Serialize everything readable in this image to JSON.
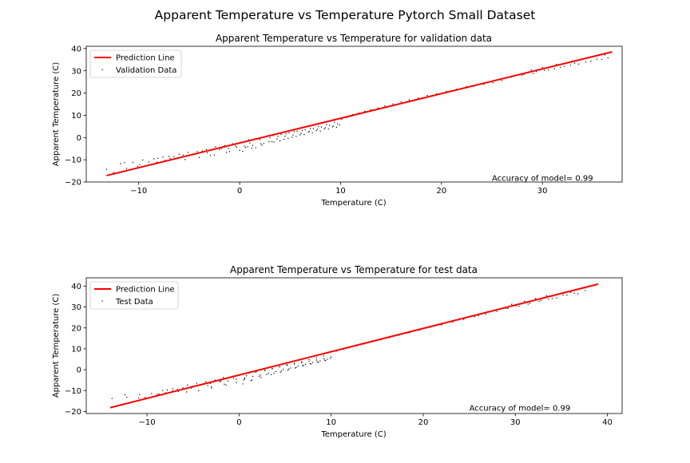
{
  "figure": {
    "title": "Apparent Temperature vs Temperature Pytorch Small Dataset"
  },
  "chart_data": [
    {
      "type": "scatter",
      "title": "Apparent Temperature vs Temperature for validation data",
      "xlabel": "Temperature (C)",
      "ylabel": "Apparent Temperature (C)",
      "xlim": [
        -15.2,
        37.9
      ],
      "ylim": [
        -20,
        41
      ],
      "xticks": [
        -10,
        0,
        10,
        20,
        30
      ],
      "yticks": [
        -20,
        -10,
        0,
        10,
        20,
        30,
        40
      ],
      "grid": false,
      "legend": {
        "placement": "upper-left",
        "entries": [
          "Prediction Line",
          "Validation Data"
        ]
      },
      "annotation": "Accuracy of model= 0.99",
      "annotation_position": [
        25,
        -19.4
      ],
      "colors": {
        "line": "#ff0000",
        "points": "#000000"
      },
      "series": [
        {
          "name": "Prediction Line",
          "kind": "line",
          "x": [
            -13.2,
            36.9
          ],
          "y": [
            -17.1,
            38.5
          ]
        },
        {
          "name": "Validation Data",
          "kind": "scatter",
          "x": [
            -13.2,
            -12.5,
            -11.8,
            -11.2,
            -10.6,
            -10.1,
            -9.6,
            -9.0,
            -8.5,
            -8.1,
            -7.6,
            -7.0,
            -6.5,
            -6.0,
            -5.6,
            -5.1,
            -4.6,
            -4.2,
            -3.7,
            -3.3,
            -2.8,
            -2.4,
            -2.0,
            -1.5,
            -1.1,
            -0.7,
            -0.3,
            0.1,
            0.5,
            0.9,
            1.3,
            1.7,
            2.1,
            2.5,
            2.9,
            3.3,
            3.7,
            4.1,
            4.5,
            4.9,
            5.3,
            5.7,
            6.1,
            6.5,
            6.9,
            7.3,
            7.7,
            8.1,
            8.5,
            8.9,
            9.3,
            9.7,
            10.1,
            10.6,
            11.2,
            11.8,
            12.4,
            13.0,
            13.7,
            14.4,
            15.2,
            16.0,
            16.8,
            17.7,
            18.6,
            19.5,
            20.5,
            21.5,
            22.5,
            23.6,
            24.7,
            25.8,
            26.9,
            28.0,
            29.1,
            30.2,
            31.2,
            32.2,
            33.2,
            34.3,
            35.4,
            36.5,
            -4.0,
            -2.5,
            -1.0,
            0.0,
            0.8,
            1.6,
            2.4,
            3.2,
            4.0,
            4.8,
            5.6,
            6.4,
            7.2,
            8.0,
            8.8,
            9.6,
            -8.8,
            -7.4,
            -6.2,
            -5.0,
            -3.2,
            -1.8,
            -0.4,
            1.0,
            2.0,
            3.0,
            3.8,
            4.6,
            5.4,
            6.2,
            7.0,
            7.8,
            8.6,
            9.4,
            0.3,
            1.2,
            2.2,
            3.4,
            4.4,
            5.2,
            6.0,
            6.8,
            7.6,
            8.4,
            9.2,
            9.9,
            -11.4,
            -9.9,
            -8.2,
            -6.9,
            -5.4,
            -2.9,
            -1.3,
            0.6,
            26.4,
            27.3,
            28.2,
            29.4,
            30.6,
            31.8,
            32.8,
            33.6,
            34.8,
            35.9,
            28.9,
            30.0,
            31.4,
            33.0,
            34.6,
            36.2,
            21.0,
            22.0,
            23.2,
            24.2,
            25.1,
            26.0
          ],
          "y": [
            -14.3,
            -15.8,
            -11.7,
            -13.9,
            -11.2,
            -13.0,
            -10.1,
            -11.0,
            -9.6,
            -9.4,
            -8.8,
            -8.5,
            -8.6,
            -7.5,
            -7.9,
            -6.7,
            -7.4,
            -6.3,
            -6.1,
            -5.4,
            -5.7,
            -4.2,
            -5.5,
            -3.6,
            -4.9,
            -2.8,
            -4.4,
            -2.2,
            -3.9,
            -1.0,
            -3.6,
            -0.5,
            -2.8,
            0.3,
            -1.9,
            0.9,
            -0.6,
            1.4,
            0.6,
            2.1,
            1.1,
            2.8,
            1.9,
            3.5,
            2.8,
            4.0,
            3.7,
            4.7,
            4.4,
            5.5,
            5.1,
            6.2,
            8.2,
            8.9,
            10.3,
            11.0,
            11.8,
            12.5,
            13.3,
            14.2,
            15.1,
            16.0,
            16.9,
            17.8,
            18.9,
            19.7,
            20.8,
            21.7,
            22.9,
            23.8,
            25.0,
            25.9,
            27.1,
            28.0,
            28.8,
            30.2,
            30.9,
            31.9,
            33.4,
            33.9,
            35.2,
            35.8,
            -9.0,
            -7.8,
            -6.3,
            -5.8,
            -4.1,
            -4.6,
            -2.7,
            -1.9,
            -1.5,
            -0.4,
            0.5,
            1.3,
            2.1,
            2.9,
            3.8,
            4.6,
            -12.1,
            -10.3,
            -9.5,
            -8.2,
            -6.9,
            -4.9,
            -3.8,
            -2.5,
            -0.9,
            0.0,
            0.6,
            1.7,
            2.6,
            3.2,
            4.1,
            5.0,
            5.8,
            6.9,
            -6.2,
            -4.8,
            -3.4,
            -2.0,
            -0.8,
            0.1,
            1.2,
            2.4,
            3.1,
            3.9,
            4.8,
            5.6,
            -11.3,
            -12.2,
            -11.1,
            -9.4,
            -9.9,
            -8.1,
            -6.7,
            -4.5,
            27.0,
            27.8,
            28.4,
            29.6,
            30.4,
            31.6,
            32.5,
            33.0,
            34.4,
            35.1,
            30.4,
            31.5,
            32.9,
            34.4,
            35.8,
            37.1,
            21.0,
            21.8,
            23.0,
            23.9,
            24.6,
            25.6
          ]
        }
      ]
    },
    {
      "type": "scatter",
      "title": "Apparent Temperature vs Temperature for test data",
      "xlabel": "Temperature (C)",
      "ylabel": "Apparent Temperature (C)",
      "xlim": [
        -16.6,
        41.6
      ],
      "ylim": [
        -21,
        44
      ],
      "xticks": [
        -10,
        0,
        10,
        20,
        30,
        40
      ],
      "yticks": [
        -20,
        -10,
        0,
        10,
        20,
        30,
        40
      ],
      "grid": false,
      "legend": {
        "placement": "upper-left",
        "entries": [
          "Prediction Line",
          "Test Data"
        ]
      },
      "annotation": "Accuracy of model= 0.99",
      "annotation_position": [
        25,
        -19.7
      ],
      "colors": {
        "line": "#ff0000",
        "points": "#000000"
      },
      "series": [
        {
          "name": "Prediction Line",
          "kind": "line",
          "x": [
            -14.0,
            39.0
          ],
          "y": [
            -18.2,
            41.0
          ]
        },
        {
          "name": "Test Data",
          "kind": "scatter",
          "x": [
            -13.8,
            -13.0,
            -12.2,
            -11.5,
            -10.8,
            -10.2,
            -9.5,
            -8.9,
            -8.3,
            -7.8,
            -7.2,
            -6.7,
            -6.1,
            -5.6,
            -5.1,
            -4.6,
            -4.1,
            -3.6,
            -3.1,
            -2.6,
            -2.1,
            -1.7,
            -1.2,
            -0.7,
            -0.3,
            0.2,
            0.6,
            1.1,
            1.5,
            1.9,
            2.3,
            2.8,
            3.2,
            3.6,
            4.0,
            4.4,
            4.8,
            5.2,
            5.6,
            6.0,
            6.4,
            6.8,
            7.2,
            7.6,
            8.0,
            8.4,
            8.8,
            9.2,
            9.6,
            10.0,
            10.6,
            11.3,
            12.0,
            12.8,
            13.6,
            14.5,
            15.4,
            16.4,
            17.4,
            18.5,
            19.6,
            20.8,
            22.0,
            23.2,
            24.4,
            25.6,
            26.8,
            28.0,
            29.2,
            30.4,
            31.6,
            32.8,
            34.0,
            35.2,
            36.4,
            37.6,
            -4.4,
            -3.0,
            -1.6,
            -0.3,
            0.6,
            1.4,
            2.2,
            3.0,
            3.8,
            4.6,
            5.4,
            6.2,
            7.0,
            7.8,
            8.6,
            9.4,
            -9.4,
            -8.0,
            -6.6,
            -5.2,
            -3.4,
            -2.0,
            -0.6,
            0.8,
            1.8,
            2.8,
            3.6,
            4.4,
            5.2,
            6.0,
            6.8,
            7.6,
            8.4,
            9.2,
            0.4,
            1.3,
            2.4,
            3.5,
            4.5,
            5.3,
            6.1,
            6.9,
            7.7,
            8.5,
            9.3,
            9.9,
            -12.4,
            -10.9,
            -8.7,
            -7.2,
            -5.7,
            -3.0,
            -1.4,
            0.5,
            27.0,
            28.0,
            29.0,
            30.1,
            31.4,
            32.6,
            33.6,
            34.5,
            35.6,
            36.8,
            29.6,
            31.0,
            32.2,
            33.4,
            35.1,
            36.0,
            21.5,
            22.6,
            23.8,
            25.0,
            26.0
          ],
          "y": [
            -13.8,
            -17.1,
            -13.2,
            -15.4,
            -11.9,
            -13.3,
            -11.4,
            -11.8,
            -10.0,
            -9.7,
            -9.1,
            -9.4,
            -8.7,
            -7.3,
            -7.9,
            -6.5,
            -7.4,
            -5.8,
            -6.6,
            -5.0,
            -5.8,
            -3.7,
            -5.4,
            -3.1,
            -4.6,
            -2.2,
            -4.0,
            -1.6,
            -3.2,
            -0.8,
            -2.6,
            -0.2,
            -1.8,
            0.6,
            -0.9,
            1.3,
            0.1,
            2.0,
            0.8,
            2.7,
            1.7,
            3.3,
            2.5,
            4.0,
            3.4,
            4.6,
            4.2,
            5.3,
            5.0,
            6.1,
            8.9,
            9.7,
            10.5,
            11.4,
            12.3,
            13.3,
            14.3,
            15.4,
            16.6,
            17.7,
            18.9,
            20.3,
            21.4,
            22.8,
            24.0,
            25.4,
            26.6,
            27.9,
            29.3,
            30.4,
            31.9,
            33.2,
            34.1,
            35.7,
            36.6,
            37.9,
            -10.1,
            -8.2,
            -7.0,
            -6.1,
            -4.4,
            -5.0,
            -3.2,
            -2.3,
            -1.7,
            -0.6,
            0.3,
            1.0,
            1.9,
            2.7,
            3.6,
            4.4,
            -12.9,
            -11.1,
            -10.4,
            -8.8,
            -7.6,
            -5.5,
            -4.2,
            -2.9,
            -1.3,
            -0.4,
            0.4,
            1.5,
            2.4,
            3.0,
            3.9,
            4.8,
            5.7,
            6.6,
            -6.8,
            -5.2,
            -3.8,
            -2.4,
            -1.2,
            -0.2,
            0.8,
            2.0,
            2.9,
            3.7,
            4.6,
            5.4,
            -12.1,
            -13.6,
            -11.6,
            -10.2,
            -10.7,
            -8.8,
            -7.4,
            -4.9,
            27.8,
            28.6,
            29.4,
            30.6,
            31.4,
            32.7,
            33.8,
            34.4,
            35.7,
            36.3,
            31.3,
            32.8,
            34.1,
            35.4,
            36.8,
            37.0,
            21.6,
            22.7,
            23.9,
            25.2,
            25.9
          ]
        }
      ]
    }
  ]
}
